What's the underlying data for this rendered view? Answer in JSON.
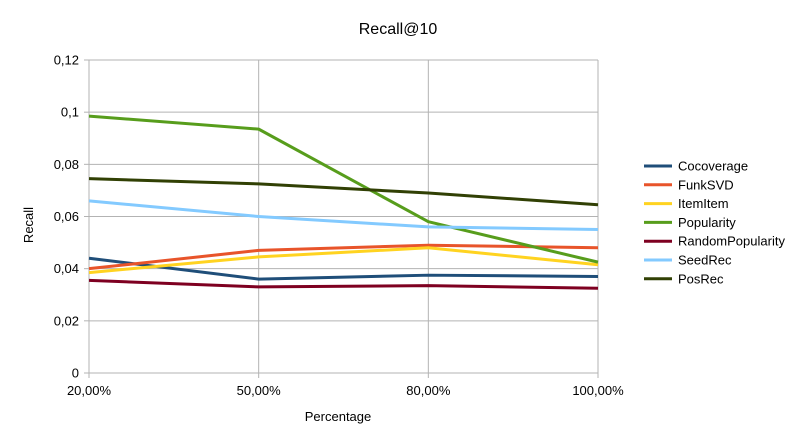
{
  "chart_data": {
    "type": "line",
    "title": "Recall@10",
    "xlabel": "Percentage",
    "ylabel": "Recall",
    "categories": [
      "20,00%",
      "50,00%",
      "80,00%",
      "100,00%"
    ],
    "ylim": [
      0,
      0.12
    ],
    "yticks": [
      "0",
      "0,02",
      "0,04",
      "0,06",
      "0,08",
      "0,1",
      "0,12"
    ],
    "grid": "horizontal",
    "legend_position": "right",
    "series": [
      {
        "name": "Cocoverage",
        "color": "#1f4e79",
        "values": [
          0.044,
          0.036,
          0.0375,
          0.037
        ]
      },
      {
        "name": "FunkSVD",
        "color": "#e8542a",
        "values": [
          0.04,
          0.047,
          0.049,
          0.048
        ]
      },
      {
        "name": "ItemItem",
        "color": "#ffd320",
        "values": [
          0.0385,
          0.0445,
          0.048,
          0.0415
        ]
      },
      {
        "name": "Popularity",
        "color": "#579d1c",
        "values": [
          0.0985,
          0.0935,
          0.058,
          0.0425
        ]
      },
      {
        "name": "RandomPopularity",
        "color": "#7e0021",
        "values": [
          0.0355,
          0.033,
          0.0335,
          0.0325
        ]
      },
      {
        "name": "SeedRec",
        "color": "#83caff",
        "values": [
          0.066,
          0.06,
          0.056,
          0.055
        ]
      },
      {
        "name": "PosRec",
        "color": "#314004",
        "values": [
          0.0745,
          0.0725,
          0.069,
          0.0645
        ]
      }
    ]
  }
}
